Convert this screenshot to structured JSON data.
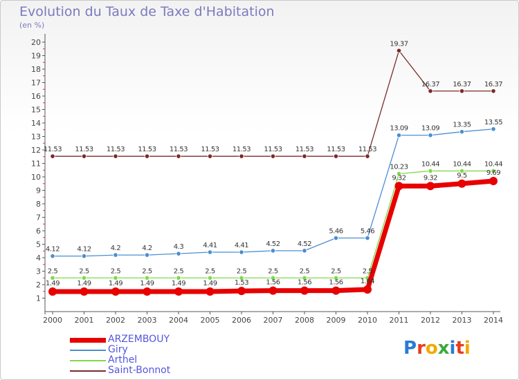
{
  "header": {
    "title": "Evolution du Taux de Taxe d'Habitation",
    "unit": "(en %)"
  },
  "chart_data": {
    "type": "line",
    "x": [
      "2000",
      "2001",
      "2002",
      "2003",
      "2004",
      "2005",
      "2006",
      "2007",
      "2008",
      "2009",
      "2010",
      "2011",
      "2012",
      "2013",
      "2014"
    ],
    "ylim": [
      1,
      20
    ],
    "yticks": [
      1,
      2,
      3,
      4,
      5,
      6,
      7,
      8,
      9,
      10,
      11,
      12,
      13,
      14,
      15,
      16,
      17,
      18,
      19,
      20
    ],
    "grid": false,
    "legend_position": "bottom-left",
    "series": [
      {
        "name": "ARZEMBOUY",
        "color": "#e80000",
        "values": [
          1.49,
          1.49,
          1.49,
          1.49,
          1.49,
          1.49,
          1.53,
          1.56,
          1.56,
          1.56,
          1.64,
          9.32,
          9.32,
          9.5,
          9.69
        ],
        "labels": [
          "1.49",
          "1.49",
          "1.49",
          "1.49",
          "1.49",
          "1.49",
          "1.53",
          "1.56",
          "1.56",
          "1.56",
          "1.64",
          "9.32",
          "9.32",
          "9.5",
          "9.69"
        ]
      },
      {
        "name": "Giry",
        "color": "#4a8ed0",
        "values": [
          4.12,
          4.12,
          4.2,
          4.2,
          4.3,
          4.41,
          4.41,
          4.52,
          4.52,
          5.46,
          5.46,
          13.09,
          13.09,
          13.35,
          13.55
        ],
        "labels": [
          "4.12",
          "4.12",
          "4.2",
          "4.2",
          "4.3",
          "4.41",
          "4.41",
          "4.52",
          "4.52",
          "5.46",
          "5.46",
          "13.09",
          "13.09",
          "13.35",
          "13.55"
        ]
      },
      {
        "name": "Arthel",
        "color": "#7fd94a",
        "values": [
          2.5,
          2.5,
          2.5,
          2.5,
          2.5,
          2.5,
          2.5,
          2.5,
          2.5,
          2.5,
          2.5,
          10.23,
          10.44,
          10.44,
          10.44
        ],
        "labels": [
          "2.5",
          "2.5",
          "2.5",
          "2.5",
          "2.5",
          "2.5",
          "2.5",
          "2.5",
          "2.5",
          "2.5",
          "2.5",
          "10.23",
          "10.44",
          "10.44",
          "10.44"
        ]
      },
      {
        "name": "Saint-Bonnot",
        "color": "#7a2a2a",
        "values": [
          11.53,
          11.53,
          11.53,
          11.53,
          11.53,
          11.53,
          11.53,
          11.53,
          11.53,
          11.53,
          11.53,
          19.37,
          16.37,
          16.37,
          16.37
        ],
        "labels": [
          "11.53",
          "11.53",
          "11.53",
          "11.53",
          "11.53",
          "11.53",
          "11.53",
          "11.53",
          "11.53",
          "11.53",
          "11.53",
          "19.37",
          "16.37",
          "16.37",
          "16.37"
        ]
      }
    ]
  },
  "logo": {
    "text": "Proxiti",
    "colors": [
      "#2a7bd6",
      "#e83c1e",
      "#f2a900",
      "#3aa93a",
      "#2a7bd6",
      "#e83c1e",
      "#f2a900"
    ]
  }
}
